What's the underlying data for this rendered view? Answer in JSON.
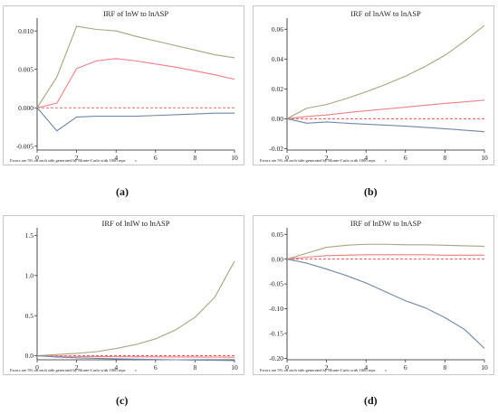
{
  "panel_labels": [
    "(a)",
    "(b)",
    "(c)",
    "(d)"
  ],
  "colors": {
    "upper": "#a8a47e",
    "irf": "#f07f86",
    "lower": "#6f87a8",
    "zero": "#ef3b3b",
    "frame": "#c8c8c8"
  },
  "chart_data": [
    {
      "type": "line",
      "title": "IRF of lnW to lnASP",
      "xlabel": "s",
      "note": "Errors are 5% on each side generated by Monte-Carlo with 1000 reps",
      "x": [
        0,
        1,
        2,
        3,
        4,
        5,
        6,
        7,
        8,
        9,
        10
      ],
      "xlim": [
        0,
        10
      ],
      "ylim": [
        -0.0055,
        0.0112
      ],
      "xticks": [
        0,
        2,
        4,
        6,
        8,
        10
      ],
      "yticks": [
        -0.005,
        0,
        0.005,
        0.01
      ],
      "ytick_labels": [
        "-0.005",
        "0.000",
        "0.005",
        "0.010"
      ],
      "series": [
        {
          "values": [
            0,
            0.004,
            0.0106,
            0.0102,
            0.01,
            0.0093,
            0.0087,
            0.0081,
            0.0075,
            0.0069,
            0.0065
          ]
        },
        {
          "values": [
            0,
            0.0006,
            0.0051,
            0.0061,
            0.0064,
            0.0061,
            0.0057,
            0.0053,
            0.0048,
            0.0043,
            0.0037
          ]
        },
        {
          "values": [
            0,
            -0.003,
            -0.0012,
            -0.0011,
            -0.0011,
            -0.0011,
            -0.001,
            -0.0009,
            -0.0008,
            -0.0007,
            -0.0007
          ]
        }
      ]
    },
    {
      "type": "line",
      "title": "IRF of lnAW to lnASP",
      "xlabel": "s",
      "note": "Errors are 5% on each side generated by Monte-Carlo with 1000 reps",
      "x": [
        0,
        1,
        2,
        3,
        4,
        5,
        6,
        7,
        8,
        9,
        10
      ],
      "xlim": [
        0,
        10
      ],
      "ylim": [
        -0.021,
        0.065
      ],
      "xticks": [
        0,
        2,
        4,
        6,
        8,
        10
      ],
      "yticks": [
        -0.02,
        0,
        0.02,
        0.04,
        0.06
      ],
      "ytick_labels": [
        "-0.02",
        "0.00",
        "0.02",
        "0.04",
        "0.06"
      ],
      "series": [
        {
          "values": [
            0,
            0.007,
            0.0095,
            0.0135,
            0.018,
            0.023,
            0.0285,
            0.035,
            0.0425,
            0.052,
            0.0625
          ]
        },
        {
          "values": [
            0,
            0.0015,
            0.0025,
            0.004,
            0.0053,
            0.0065,
            0.0077,
            0.009,
            0.0102,
            0.0113,
            0.0124
          ]
        },
        {
          "values": [
            0,
            -0.003,
            -0.0022,
            -0.003,
            -0.0037,
            -0.0043,
            -0.005,
            -0.0058,
            -0.0067,
            -0.0077,
            -0.0087
          ]
        }
      ]
    },
    {
      "type": "line",
      "title": "IRF of lnIW to lnASP",
      "xlabel": "s",
      "note": "Errors are 5% on each side generated by Monte-Carlo with 1000 reps",
      "x": [
        0,
        1,
        2,
        3,
        4,
        5,
        6,
        7,
        8,
        9,
        10
      ],
      "xlim": [
        0,
        10
      ],
      "ylim": [
        -0.05,
        1.55
      ],
      "xticks": [
        0,
        2,
        4,
        6,
        8,
        10
      ],
      "yticks": [
        0,
        0.5,
        1.0,
        1.5
      ],
      "ytick_labels": [
        "0.0",
        "0.5",
        "1.0",
        "1.5"
      ],
      "series": [
        {
          "values": [
            0,
            0.015,
            0.03,
            0.05,
            0.09,
            0.14,
            0.21,
            0.32,
            0.48,
            0.73,
            1.18
          ]
        },
        {
          "values": [
            0,
            -0.005,
            -0.008,
            -0.01,
            -0.012,
            -0.013,
            -0.014,
            -0.015,
            -0.016,
            -0.017,
            -0.018
          ]
        },
        {
          "values": [
            0,
            -0.015,
            -0.025,
            -0.032,
            -0.038,
            -0.042,
            -0.046,
            -0.05,
            -0.053,
            -0.056,
            -0.06
          ]
        }
      ]
    },
    {
      "type": "line",
      "title": "IRF of lnDW to lnASP",
      "xlabel": "s",
      "note": "Errors are 5% on each side generated by Monte-Carlo with 1000 reps",
      "x": [
        0,
        1,
        2,
        3,
        4,
        5,
        6,
        7,
        8,
        9,
        10
      ],
      "xlim": [
        0,
        10
      ],
      "ylim": [
        -0.203,
        0.056
      ],
      "xticks": [
        0,
        2,
        4,
        6,
        8,
        10
      ],
      "yticks": [
        -0.2,
        -0.15,
        -0.1,
        -0.05,
        0,
        0.05
      ],
      "ytick_labels": [
        "-0.20",
        "-0.15",
        "-0.10",
        "-0.05",
        "0.00",
        "0.05"
      ],
      "series": [
        {
          "values": [
            0,
            0.012,
            0.024,
            0.028,
            0.03,
            0.03,
            0.029,
            0.029,
            0.028,
            0.027,
            0.026
          ]
        },
        {
          "values": [
            0,
            0.004,
            0.007,
            0.008,
            0.009,
            0.009,
            0.009,
            0.009,
            0.008,
            0.008,
            0.008
          ]
        },
        {
          "values": [
            0,
            -0.008,
            -0.02,
            -0.033,
            -0.048,
            -0.066,
            -0.084,
            -0.098,
            -0.118,
            -0.142,
            -0.18
          ]
        }
      ]
    }
  ]
}
